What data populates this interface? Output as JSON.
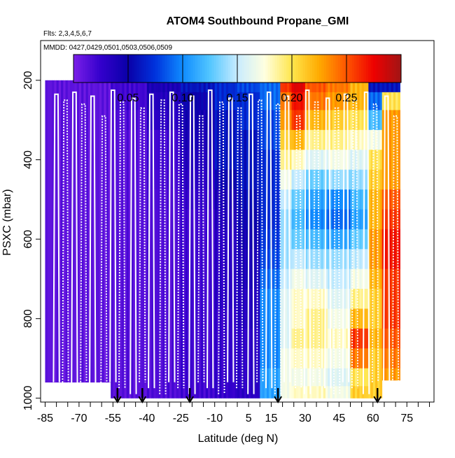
{
  "chart_data": {
    "type": "heatmap",
    "title": "ATOM4 Southbound Propane_GMI",
    "flights_note": "Flts: 2,3,4,5,6,7",
    "dates_note": "MMDD: 0427,0429,0501,0503,0506,0509",
    "xlabel": "Latitude (deg N)",
    "ylabel": "PSXC (mbar)",
    "xlim": [
      -87,
      87
    ],
    "ylim": [
      1010,
      100
    ],
    "x_ticks": [
      -85,
      -70,
      -55,
      -40,
      -25,
      -10,
      5,
      15,
      30,
      45,
      60,
      75
    ],
    "x_tick_labels": [
      "-85",
      "-70",
      "-55",
      "-40",
      "-25",
      "-10",
      "5",
      "15",
      "30",
      "45",
      "60",
      "75"
    ],
    "y_ticks": [
      200,
      400,
      600,
      800,
      1000
    ],
    "y_tick_labels": [
      "200",
      "400",
      "600",
      "800",
      "1000"
    ],
    "colorbar": {
      "min": 0.0,
      "max": 0.3,
      "ticks": [
        0.05,
        0.1,
        0.15,
        0.2,
        0.25
      ],
      "tick_labels": [
        "0.05",
        "0.10",
        "0.15",
        "0.20",
        "0.25"
      ],
      "colors": [
        "#7b1fe8",
        "#3300cc",
        "#0a00a8",
        "#0033dd",
        "#0f8cff",
        "#53c6ff",
        "#c8ecff",
        "#ffffe0",
        "#ffe64d",
        "#ffaa00",
        "#ff5500",
        "#ee0000",
        "#a01515"
      ]
    },
    "pressure_levels": [
      210,
      250,
      300,
      350,
      400,
      450,
      500,
      550,
      600,
      650,
      700,
      750,
      800,
      850,
      900,
      950,
      990
    ],
    "latitude_bands": [
      {
        "lat_start": -85,
        "lat_end": -56,
        "top": 200,
        "bottom": 960,
        "profile": [
          0.01,
          0.01,
          0.01,
          0.01,
          0.01,
          0.01,
          0.01,
          0.01,
          0.01,
          0.01,
          0.01,
          0.01,
          0.01,
          0.01,
          0.01,
          0.01,
          0.01
        ]
      },
      {
        "lat_start": -56,
        "lat_end": -40,
        "top": 165,
        "bottom": 1000,
        "profile": [
          0.02,
          0.02,
          0.015,
          0.012,
          0.012,
          0.012,
          0.012,
          0.012,
          0.012,
          0.012,
          0.012,
          0.012,
          0.012,
          0.012,
          0.012,
          0.012,
          0.012
        ]
      },
      {
        "lat_start": -40,
        "lat_end": -25,
        "top": 165,
        "bottom": 1000,
        "profile": [
          0.04,
          0.035,
          0.03,
          0.02,
          0.02,
          0.018,
          0.016,
          0.015,
          0.015,
          0.015,
          0.015,
          0.015,
          0.015,
          0.015,
          0.015,
          0.015,
          0.015
        ]
      },
      {
        "lat_start": -25,
        "lat_end": -10,
        "top": 165,
        "bottom": 1000,
        "profile": [
          0.06,
          0.05,
          0.045,
          0.04,
          0.035,
          0.03,
          0.025,
          0.02,
          0.02,
          0.02,
          0.02,
          0.02,
          0.02,
          0.02,
          0.02,
          0.02,
          0.02
        ]
      },
      {
        "lat_start": -10,
        "lat_end": 0,
        "top": 165,
        "bottom": 1000,
        "profile": [
          0.07,
          0.07,
          0.06,
          0.06,
          0.06,
          0.05,
          0.04,
          0.035,
          0.03,
          0.03,
          0.03,
          0.03,
          0.025,
          0.025,
          0.025,
          0.025,
          0.025
        ]
      },
      {
        "lat_start": 0,
        "lat_end": 10,
        "top": 165,
        "bottom": 1000,
        "profile": [
          0.08,
          0.07,
          0.07,
          0.06,
          0.06,
          0.06,
          0.055,
          0.05,
          0.045,
          0.04,
          0.04,
          0.035,
          0.035,
          0.03,
          0.03,
          0.03,
          0.03
        ]
      },
      {
        "lat_start": 10,
        "lat_end": 19,
        "top": 165,
        "bottom": 1000,
        "profile": [
          0.09,
          0.09,
          0.08,
          0.08,
          0.07,
          0.07,
          0.07,
          0.07,
          0.075,
          0.08,
          0.09,
          0.1,
          0.1,
          0.1,
          0.1,
          0.11,
          0.11
        ]
      },
      {
        "lat_start": 19,
        "lat_end": 24,
        "top": 165,
        "bottom": 1000,
        "profile": [
          0.26,
          0.24,
          0.23,
          0.21,
          0.19,
          0.17,
          0.15,
          0.14,
          0.14,
          0.14,
          0.15,
          0.16,
          0.16,
          0.16,
          0.17,
          0.17,
          0.17
        ]
      },
      {
        "lat_start": 24,
        "lat_end": 30,
        "top": 165,
        "bottom": 1000,
        "profile": [
          0.28,
          0.27,
          0.26,
          0.22,
          0.18,
          0.15,
          0.13,
          0.12,
          0.13,
          0.15,
          0.17,
          0.18,
          0.18,
          0.19,
          0.18,
          0.17,
          0.18
        ]
      },
      {
        "lat_start": 30,
        "lat_end": 40,
        "top": 165,
        "bottom": 1000,
        "profile": [
          0.25,
          0.24,
          0.22,
          0.19,
          0.16,
          0.13,
          0.11,
          0.1,
          0.12,
          0.14,
          0.16,
          0.18,
          0.19,
          0.19,
          0.18,
          0.17,
          0.18
        ]
      },
      {
        "lat_start": 40,
        "lat_end": 50,
        "top": 165,
        "bottom": 1000,
        "profile": [
          0.24,
          0.23,
          0.21,
          0.19,
          0.17,
          0.14,
          0.1,
          0.09,
          0.11,
          0.14,
          0.15,
          0.16,
          0.17,
          0.18,
          0.17,
          0.16,
          0.17
        ]
      },
      {
        "lat_start": 50,
        "lat_end": 58,
        "top": 165,
        "bottom": 1000,
        "profile": [
          0.22,
          0.22,
          0.2,
          0.18,
          0.16,
          0.14,
          0.12,
          0.11,
          0.13,
          0.15,
          0.17,
          0.19,
          0.22,
          0.26,
          0.24,
          0.2,
          0.21
        ]
      },
      {
        "lat_start": 58,
        "lat_end": 64,
        "top": 165,
        "bottom": 1000,
        "profile": [
          0.06,
          0.09,
          0.12,
          0.17,
          0.2,
          0.21,
          0.22,
          0.22,
          0.23,
          0.23,
          0.22,
          0.21,
          0.21,
          0.22,
          0.21,
          0.21,
          0.21
        ]
      },
      {
        "lat_start": 64,
        "lat_end": 72,
        "top": 165,
        "bottom": 955,
        "profile": [
          0.06,
          0.2,
          0.23,
          0.23,
          0.23,
          0.23,
          0.25,
          0.26,
          0.27,
          0.27,
          0.26,
          0.26,
          0.26,
          0.25,
          0.24,
          0.23,
          0.23
        ]
      }
    ],
    "flight_profiles": [
      -80,
      -76,
      -72,
      -68,
      -64,
      -59,
      -55,
      -51,
      -46,
      -42,
      -38,
      -33,
      -29,
      -25,
      -20,
      -16,
      -12,
      -7,
      -3,
      1,
      6,
      10,
      14,
      18,
      22,
      27,
      31,
      35,
      40,
      44,
      48,
      52,
      57,
      61,
      66,
      70
    ],
    "marker_latitudes": [
      -53,
      -42,
      -21,
      18,
      62
    ]
  }
}
